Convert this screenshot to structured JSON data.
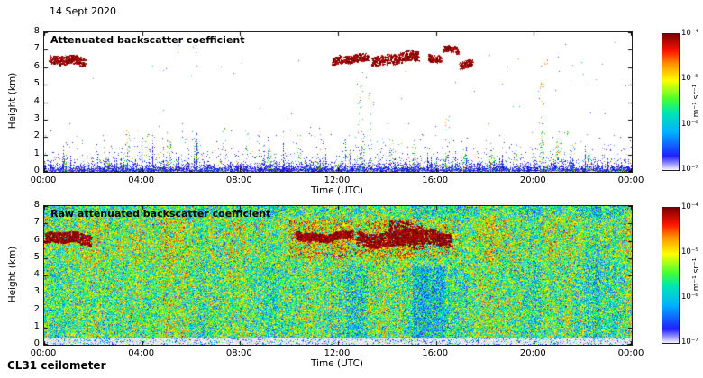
{
  "header": {
    "date": "14 Sept 2020"
  },
  "footer": {
    "instrument": "CL31 ceilometer"
  },
  "axes": {
    "x_label": "Time (UTC)",
    "y_label": "Height (km)",
    "x_ticks": [
      "00:00",
      "04:00",
      "08:00",
      "12:00",
      "16:00",
      "20:00",
      "00:00"
    ],
    "y_ticks": [
      "0",
      "1",
      "2",
      "3",
      "4",
      "5",
      "6",
      "7",
      "8"
    ],
    "x_range_hours": [
      0,
      24
    ],
    "y_range_km": [
      0,
      8
    ]
  },
  "colorbar": {
    "tick_labels": [
      "10⁻⁴",
      "10⁻⁵",
      "10⁻⁶",
      "10⁻⁷"
    ],
    "tick_fractions_from_top": [
      0,
      0.333,
      0.667,
      1
    ],
    "unit": "m⁻¹ sr⁻¹",
    "scale": "log10",
    "range_log10": [
      -7,
      -4
    ],
    "stops": [
      [
        0,
        "#f2efff"
      ],
      [
        0.1,
        "#2020ff"
      ],
      [
        0.28,
        "#00b4ff"
      ],
      [
        0.42,
        "#00e6b4"
      ],
      [
        0.52,
        "#46ff32"
      ],
      [
        0.66,
        "#ffff00"
      ],
      [
        0.78,
        "#ff9600"
      ],
      [
        0.88,
        "#ff1400"
      ],
      [
        1,
        "#800000"
      ]
    ]
  },
  "chart_data": [
    {
      "type": "heatmap",
      "title": "Attenuated backscatter coefficient",
      "xlabel": "Time (UTC)",
      "ylabel": "Height (km)",
      "x_range_hours": [
        0,
        24
      ],
      "y_range_km": [
        0,
        8
      ],
      "value_units": "m⁻¹ sr⁻¹",
      "value_range_log10": [
        -7,
        -4
      ],
      "background": "#ffffff",
      "surface_layer": {
        "dense_top_km": 0.5,
        "spike_top_km": 2.2
      },
      "cloud_events": [
        {
          "t0": 0.25,
          "t1": 1.7,
          "h": 6.3,
          "thick": 0.25
        },
        {
          "t0": 11.8,
          "t1": 13.2,
          "h": 6.4,
          "thick": 0.22
        },
        {
          "t0": 13.4,
          "t1": 15.3,
          "h": 6.5,
          "thick": 0.28
        },
        {
          "t0": 15.7,
          "t1": 16.2,
          "h": 6.6,
          "thick": 0.2
        },
        {
          "t0": 16.3,
          "t1": 16.9,
          "h": 6.9,
          "thick": 0.16
        },
        {
          "t0": 17.0,
          "t1": 17.5,
          "h": 6.25,
          "thick": 0.2
        }
      ],
      "spike_times": [
        0.9,
        2.6,
        3.4,
        4.2,
        5.1,
        6.2,
        7.4,
        8.3,
        9.2,
        10.4,
        11.2,
        12.4,
        13.0,
        14.2,
        15.1,
        16.4,
        17.2,
        18.3,
        19.3,
        20.35,
        21.0,
        21.6,
        22.3,
        23.1
      ],
      "spike_max_km": 2.6,
      "tall_spikes": [
        {
          "t": 12.9,
          "h_max": 5.3
        },
        {
          "t": 13.35,
          "h_max": 4.6
        },
        {
          "t": 16.45,
          "h_max": 3.2
        },
        {
          "t": 20.3,
          "h_max": 5.1
        }
      ],
      "extra_dots": [
        {
          "t": 20.35,
          "h": 4.9,
          "color": "#ff8c00",
          "n": 7
        },
        {
          "t": 20.5,
          "h": 6.3,
          "color": "#ff8c00",
          "n": 5
        },
        {
          "t": 21.3,
          "h": 2.2,
          "color": "#2abf2a",
          "n": 6
        }
      ]
    },
    {
      "type": "heatmap",
      "title": "Raw attenuated backscatter coefficient",
      "xlabel": "Time (UTC)",
      "ylabel": "Height (km)",
      "x_range_hours": [
        0,
        24
      ],
      "y_range_km": [
        0,
        8
      ],
      "value_units": "m⁻¹ sr⁻¹",
      "value_range_log10": [
        -7,
        -4
      ],
      "surface_band_km": 0.38,
      "noise_center": 0.5,
      "noise_spread": 0.54,
      "cloud_events": [
        {
          "t0": 0.05,
          "t1": 1.9,
          "h": 6.1,
          "thick": 0.3
        },
        {
          "t0": 10.3,
          "t1": 12.6,
          "h": 6.3,
          "thick": 0.22
        },
        {
          "t0": 12.8,
          "t1": 16.6,
          "h": 6.15,
          "thick": 0.4
        },
        {
          "t0": 14.1,
          "t1": 15.5,
          "h": 6.35,
          "thick": 0.7
        }
      ],
      "enhanced_region": {
        "t0": 10.0,
        "t1": 17.0,
        "h0": 5.0,
        "h1": 7.2
      },
      "dip_bands": [
        {
          "t0": 11.7,
          "t1": 13.2,
          "h_max": 4.5
        },
        {
          "t0": 14.6,
          "t1": 16.4,
          "h_max": 4.5
        }
      ]
    }
  ]
}
